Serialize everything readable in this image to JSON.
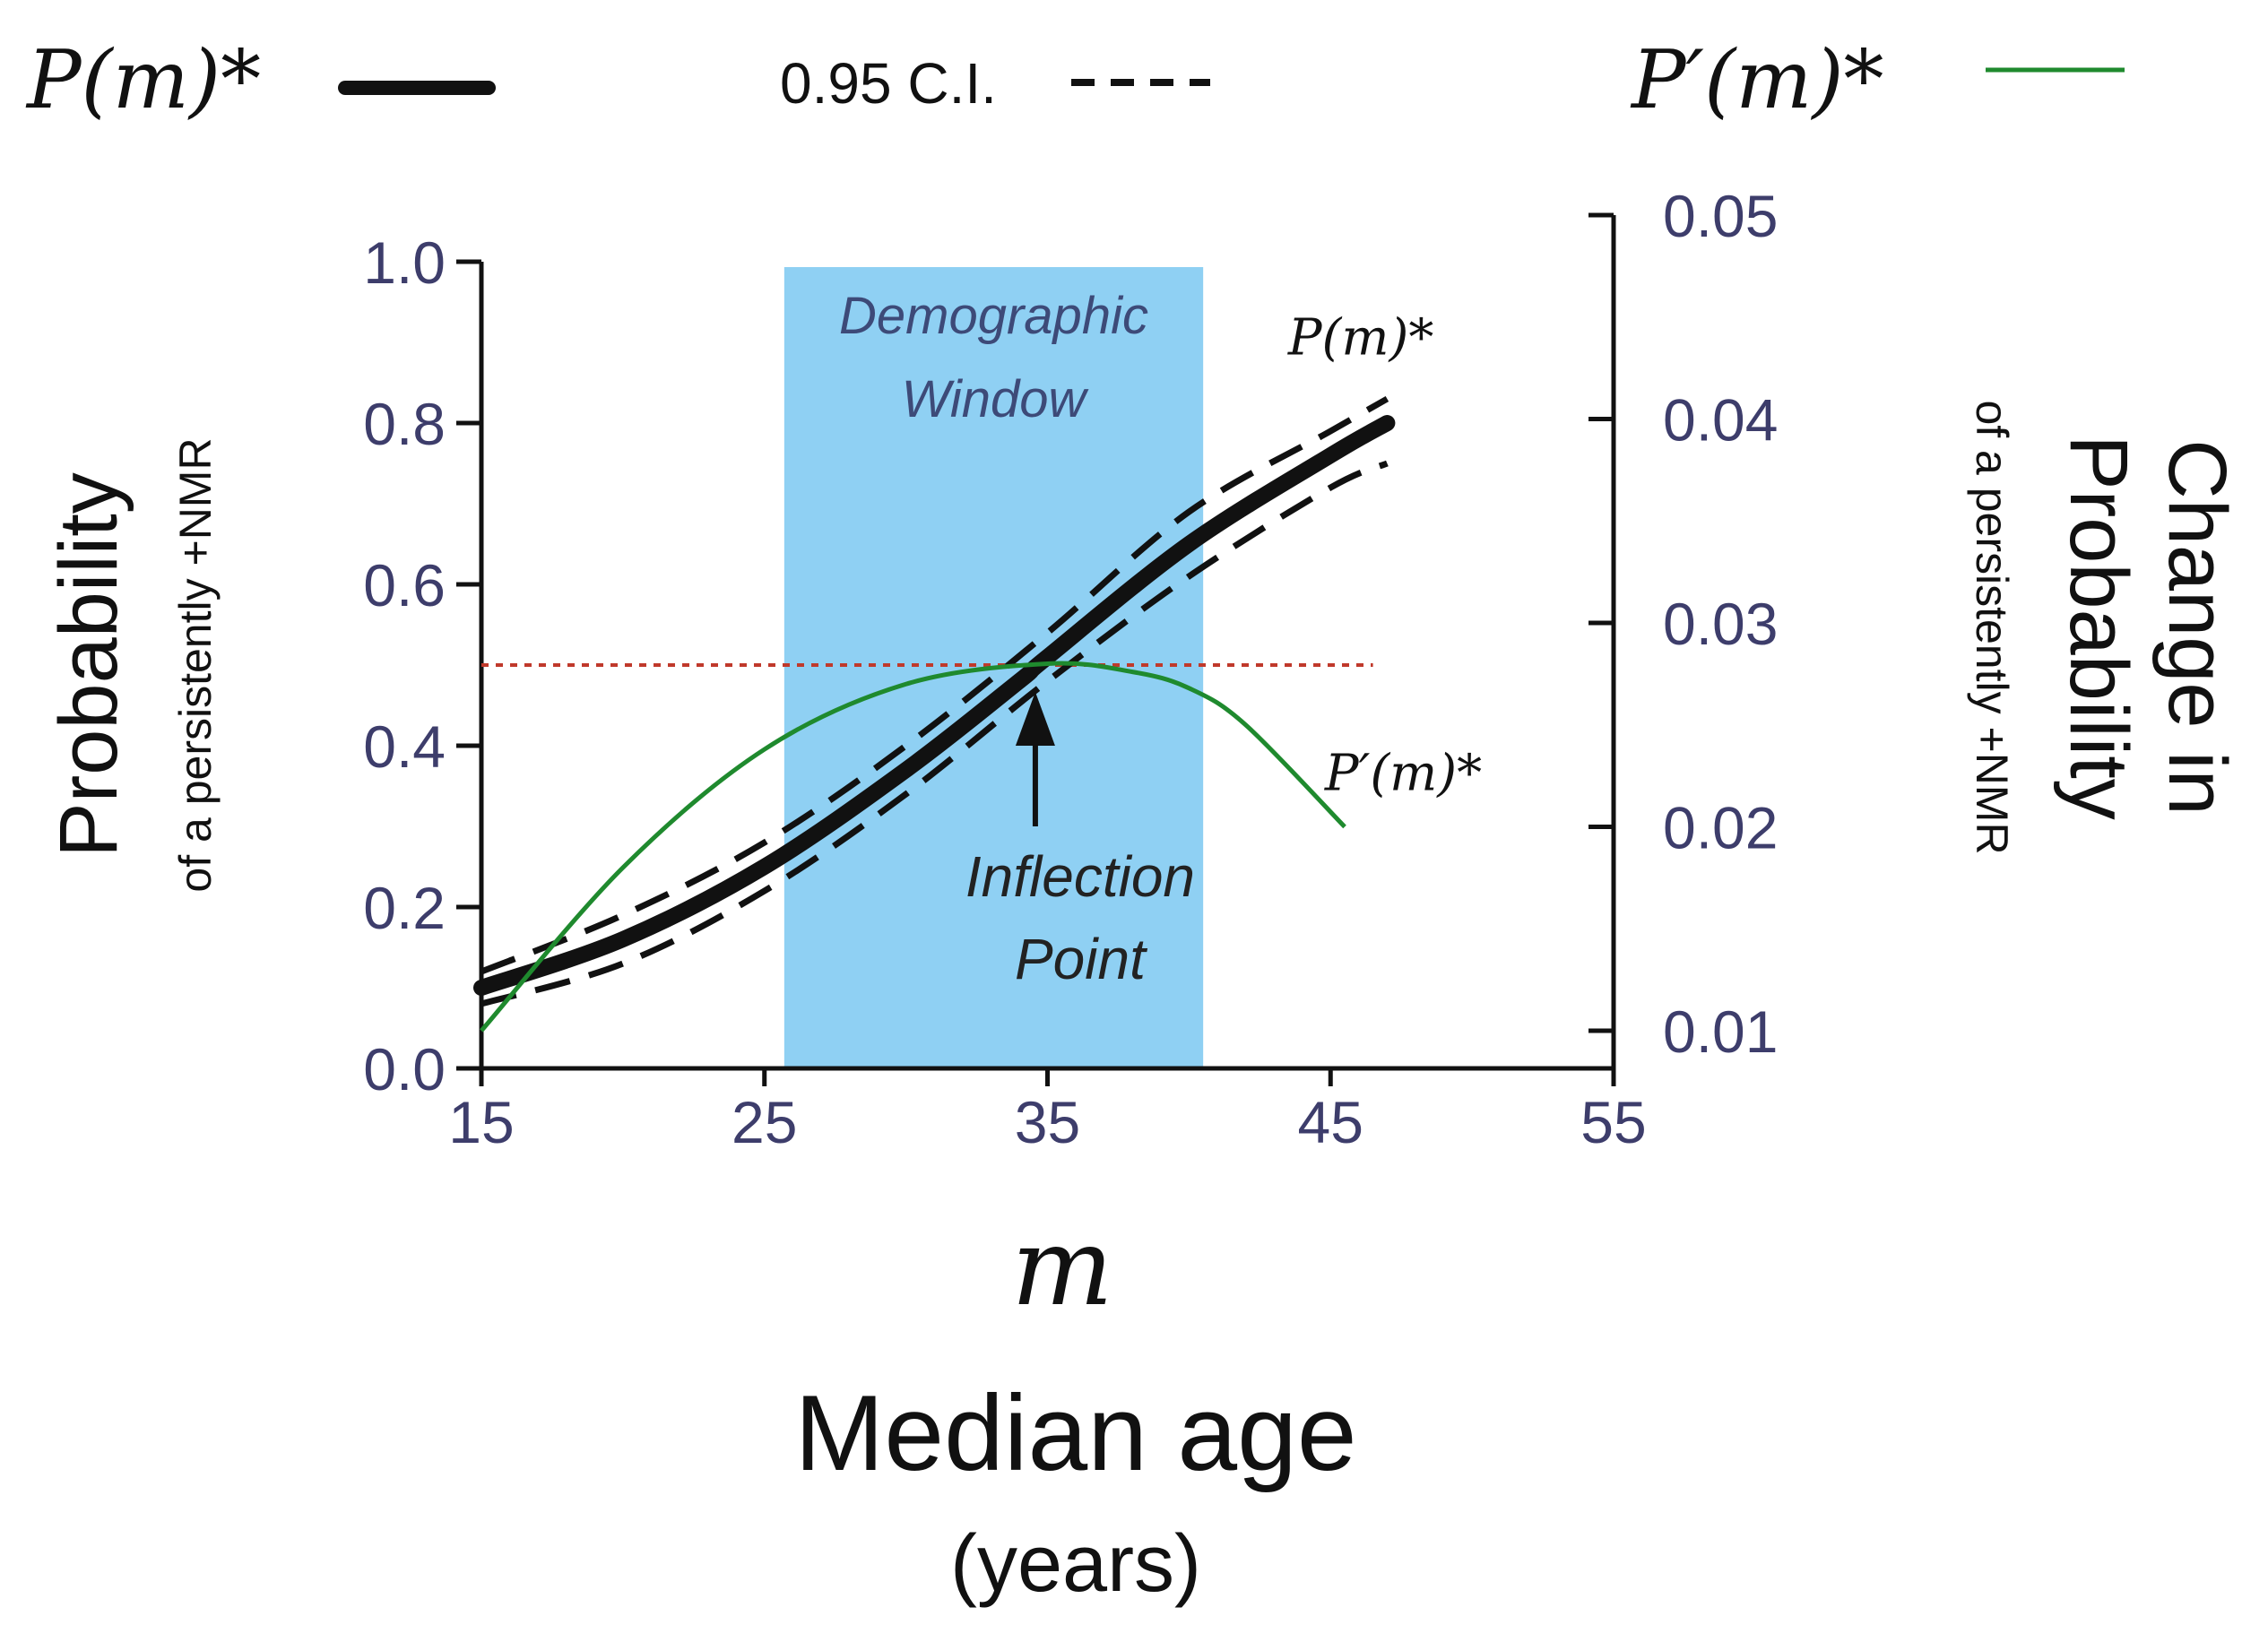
{
  "chart_data": {
    "type": "line",
    "title": "",
    "legend": {
      "position": "top",
      "items": [
        {
          "label": "P(m)*",
          "style": "thick-solid",
          "color": "#111111"
        },
        {
          "label": "0.95 C.I.",
          "style": "dashed",
          "color": "#111111"
        },
        {
          "label": "P′(m)*",
          "style": "thin-solid",
          "color": "#1f8a2e"
        }
      ]
    },
    "xaxis": {
      "symbol": "m",
      "label": "Median age",
      "unit": "(years)",
      "range": [
        15,
        55
      ],
      "ticks": [
        15,
        25,
        35,
        45,
        55
      ]
    },
    "yaxis_left": {
      "label": "Probability",
      "sublabel": "of a persistently +NMR",
      "range": [
        0.0,
        1.0
      ],
      "ticks": [
        "0.0",
        "0.2",
        "0.4",
        "0.6",
        "0.8",
        "1.0"
      ]
    },
    "yaxis_right": {
      "label_line1": "Change in",
      "label_line2": "Probability",
      "sublabel": "of a persistently +NMR",
      "range": [
        0.01,
        0.05
      ],
      "ticks": [
        "0.01",
        "0.02",
        "0.03",
        "0.04",
        "0.05"
      ]
    },
    "shaded_region": {
      "label_line1": "Demographic",
      "label_line2": "Window",
      "x_start": 25.7,
      "x_end": 40.5,
      "color": "#8fd0f3"
    },
    "reference_line": {
      "y": 0.5,
      "style": "dotted",
      "color": "#c0392b"
    },
    "annotation": {
      "label_line1": "Inflection",
      "label_line2": "Point",
      "x": 34.0,
      "y": 0.5
    },
    "series": [
      {
        "name": "P(m)*",
        "axis": "left",
        "x": [
          15,
          20,
          25,
          30,
          34,
          35,
          40,
          45,
          47
        ],
        "y": [
          0.1,
          0.16,
          0.25,
          0.37,
          0.48,
          0.51,
          0.65,
          0.76,
          0.8
        ],
        "inline_label": "P(m)*"
      },
      {
        "name": "0.95 C.I. upper",
        "axis": "left",
        "x": [
          15,
          20,
          25,
          30,
          35,
          40,
          45,
          47
        ],
        "y": [
          0.12,
          0.19,
          0.28,
          0.4,
          0.54,
          0.69,
          0.79,
          0.83
        ]
      },
      {
        "name": "0.95 C.I. lower",
        "axis": "left",
        "x": [
          15,
          20,
          25,
          30,
          35,
          40,
          45,
          47
        ],
        "y": [
          0.08,
          0.13,
          0.22,
          0.34,
          0.48,
          0.61,
          0.72,
          0.75
        ]
      },
      {
        "name": "P′(m)*",
        "axis": "right",
        "x": [
          15,
          20,
          25,
          30,
          35,
          38,
          40,
          42,
          45.5
        ],
        "y": [
          0.01,
          0.018,
          0.0238,
          0.027,
          0.028,
          0.0276,
          0.0268,
          0.025,
          0.02
        ],
        "inline_label": "P′(m)*"
      }
    ]
  }
}
